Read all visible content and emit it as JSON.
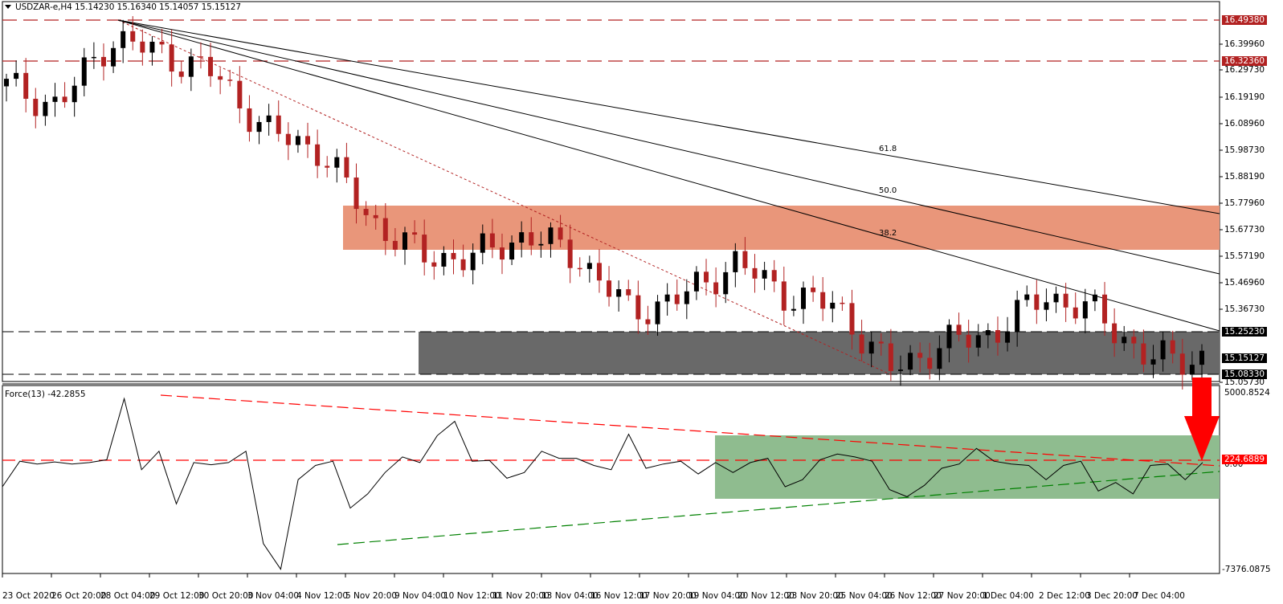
{
  "header": {
    "symbol": "USDZAR-e,H4",
    "ohlc": "15.14230 15.16340 15.14057 15.15127",
    "title_full": "USDZAR-e,H4  15.14230 15.16340 15.14057 15.15127"
  },
  "indicator": {
    "title": "Force(13) -42.2855",
    "name": "Force(13)",
    "value": "-42.2855"
  },
  "price_axis": {
    "ticks": [
      "16.39960",
      "16.29730",
      "16.19190",
      "16.08960",
      "15.98730",
      "15.88190",
      "15.77960",
      "15.67730",
      "15.57190",
      "15.46960",
      "15.36730",
      "15.05730"
    ],
    "badges": [
      {
        "label": "16.49380",
        "color": "#b22222"
      },
      {
        "label": "16.32360",
        "color": "#b22222"
      },
      {
        "label": "15.25230",
        "color": "#000000"
      },
      {
        "label": "15.15127",
        "color": "#000000"
      },
      {
        "label": "15.08330",
        "color": "#000000"
      }
    ]
  },
  "force_axis": {
    "top": "5000.8524",
    "zero": "0.00",
    "bottom": "-7376.0875",
    "badge": {
      "label": "224.6889",
      "color": "#ff0000"
    }
  },
  "time_axis": {
    "labels": [
      "23 Oct 2020",
      "26 Oct 20:00",
      "28 Oct 04:00",
      "29 Oct 12:00",
      "30 Oct 20:00",
      "3 Nov 04:00",
      "4 Nov 12:00",
      "5 Nov 20:00",
      "9 Nov 04:00",
      "10 Nov 12:00",
      "11 Nov 20:00",
      "13 Nov 04:00",
      "16 Nov 12:00",
      "17 Nov 20:00",
      "19 Nov 04:00",
      "20 Nov 12:00",
      "23 Nov 20:00",
      "25 Nov 04:00",
      "26 Nov 12:00",
      "27 Nov 20:00",
      "1 Dec 04:00",
      "2 Dec 12:00",
      "3 Dec 20:00",
      "7 Dec 04:00"
    ]
  },
  "fibonacci": {
    "levels": [
      "38.2",
      "50.0",
      "61.8"
    ]
  },
  "colors": {
    "bull_candle": "#000000",
    "bear_candle": "#b22222",
    "resistance_zone": "#e9967a",
    "support_zone": "#696969",
    "force_zone": "#8fbc8f",
    "arrow": "#ff0000",
    "horizontal_resistance": "#b22222",
    "force_trend_red": "#ff0000",
    "force_trend_green": "#008000"
  },
  "chart_data": [
    {
      "type": "candlestick",
      "title": "USDZAR-e,H4",
      "ohlc_last": {
        "open": 15.1423,
        "high": 15.1634,
        "low": 15.14057,
        "close": 15.15127
      },
      "x": [
        "23 Oct 2020",
        "26 Oct 20:00",
        "28 Oct 04:00",
        "29 Oct 12:00",
        "30 Oct 20:00",
        "3 Nov 04:00",
        "4 Nov 12:00",
        "5 Nov 20:00",
        "9 Nov 04:00",
        "10 Nov 12:00",
        "11 Nov 20:00",
        "13 Nov 04:00",
        "16 Nov 12:00",
        "17 Nov 20:00",
        "19 Nov 04:00",
        "20 Nov 12:00",
        "23 Nov 20:00",
        "25 Nov 04:00",
        "26 Nov 12:00",
        "27 Nov 20:00",
        "1 Dec 04:00",
        "2 Dec 12:00",
        "3 Dec 20:00",
        "7 Dec 04:00"
      ],
      "approx_close": [
        16.23,
        16.15,
        16.42,
        16.36,
        16.28,
        16.05,
        15.98,
        15.7,
        15.55,
        15.55,
        15.64,
        15.55,
        15.33,
        15.39,
        15.53,
        15.4,
        15.35,
        15.1,
        15.2,
        15.25,
        15.4,
        15.32,
        15.14,
        15.15
      ],
      "ylim": [
        15.0573,
        16.56
      ],
      "horizontal_lines": [
        {
          "value": 16.4938,
          "style": "dashed",
          "color": "#b22222"
        },
        {
          "value": 16.3236,
          "style": "dashed",
          "color": "#b22222"
        },
        {
          "value": 15.2523,
          "style": "dashed",
          "color": "#000000"
        },
        {
          "value": 15.0833,
          "style": "dashed",
          "color": "#000000"
        }
      ],
      "zones": [
        {
          "name": "resistance",
          "from": 15.595,
          "to": 15.752,
          "color": "#e9967a"
        },
        {
          "name": "support",
          "from": 15.0833,
          "to": 15.2523,
          "color": "#696969"
        }
      ],
      "fib_fan": {
        "origin": "28 Oct 04:00 @ 16.4938",
        "levels": [
          "38.2",
          "50.0",
          "61.8"
        ]
      },
      "annotations": [
        "red dotted descending trendline",
        "red down arrow near 7 Dec"
      ]
    },
    {
      "type": "line",
      "title": "Force(13) -42.2855",
      "ylim": [
        -7376.0875,
        5000.8524
      ],
      "horizontal_lines": [
        {
          "value": 224.6889,
          "style": "dashed",
          "color": "#ff0000"
        }
      ],
      "approx_values": [
        -1500,
        300,
        100,
        250,
        100,
        200,
        400,
        4700,
        -300,
        1000,
        -2700,
        200,
        50,
        200,
        1000,
        -5500,
        -7300,
        -1000,
        0,
        300,
        -3000,
        -2000,
        -500,
        600,
        200,
        2100,
        3100,
        300,
        350,
        -900,
        -500,
        1000,
        500,
        500,
        0,
        -300,
        2200,
        -200,
        100,
        300,
        -600,
        200,
        -500,
        200,
        500,
        -1500,
        -1000,
        400,
        800,
        600,
        300,
        -1700,
        -2200,
        -1400,
        -200,
        100,
        1200,
        300,
        100,
        0,
        -1000,
        0,
        300,
        -1800,
        -1200,
        -2000,
        0,
        100,
        -1000,
        200
      ]
    }
  ]
}
